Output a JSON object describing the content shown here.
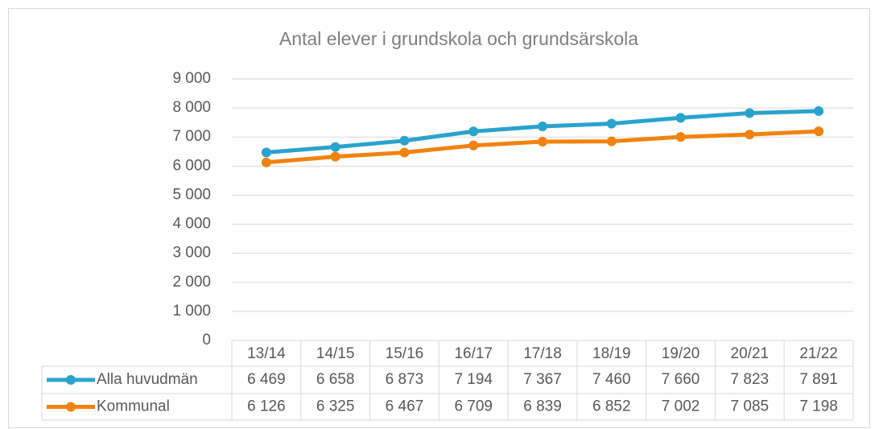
{
  "chart_data": {
    "type": "line",
    "title": "Antal elever i grundskola och grundsärskola",
    "categories": [
      "13/14",
      "14/15",
      "15/16",
      "16/17",
      "17/18",
      "18/19",
      "19/20",
      "20/21",
      "21/22"
    ],
    "series": [
      {
        "name": "Alla huvudmän",
        "color": "#2aa3cc",
        "values": [
          6469,
          6658,
          6873,
          7194,
          7367,
          7460,
          7660,
          7823,
          7891
        ],
        "value_labels": [
          "6 469",
          "6 658",
          "6 873",
          "7 194",
          "7 367",
          "7 460",
          "7 660",
          "7 823",
          "7 891"
        ]
      },
      {
        "name": "Kommunal",
        "color": "#f0830f",
        "values": [
          6126,
          6325,
          6467,
          6709,
          6839,
          6852,
          7002,
          7085,
          7198
        ],
        "value_labels": [
          "6 126",
          "6 325",
          "6 467",
          "6 709",
          "6 839",
          "6 852",
          "7 002",
          "7 085",
          "7 198"
        ]
      }
    ],
    "ylim": [
      0,
      9000
    ],
    "yticks": [
      0,
      {
        "value": 1000,
        "label": "1 000"
      },
      {
        "value": 2000,
        "label": "2 000"
      },
      {
        "value": 3000,
        "label": "3 000"
      },
      {
        "value": 4000,
        "label": "4 000"
      },
      {
        "value": 5000,
        "label": "5 000"
      },
      {
        "value": 6000,
        "label": "6 000"
      },
      {
        "value": 7000,
        "label": "7 000"
      },
      {
        "value": 8000,
        "label": "8 000"
      },
      {
        "value": 9000,
        "label": "9 000"
      }
    ],
    "grid": true
  }
}
